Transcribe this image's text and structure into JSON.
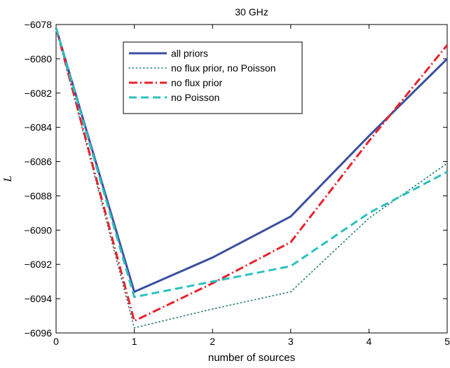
{
  "chart_data": {
    "type": "line",
    "title": "30 GHz",
    "xlabel": "number of sources",
    "ylabel": "L",
    "xlim": [
      0,
      5
    ],
    "ylim": [
      -6096,
      -6078
    ],
    "xticks": [
      0,
      1,
      2,
      3,
      4,
      5
    ],
    "yticks": [
      -6096,
      -6094,
      -6092,
      -6090,
      -6088,
      -6086,
      -6084,
      -6082,
      -6080,
      -6078
    ],
    "x_tick_labels": [
      "0",
      "1",
      "2",
      "3",
      "4",
      "5"
    ],
    "y_tick_labels": [
      "−6096",
      "−6094",
      "−6092",
      "−6090",
      "−6088",
      "−6086",
      "−6084",
      "−6082",
      "−6080",
      "−6078"
    ],
    "grid": false,
    "legend_position": "top-center",
    "x": [
      0,
      1,
      2,
      3,
      4,
      5
    ],
    "series": [
      {
        "name": "all priors",
        "color": "#3a4fa0",
        "style": "solid",
        "values": [
          -6078.2,
          -6093.6,
          -6091.6,
          -6089.2,
          -6084.5,
          -6080.0
        ]
      },
      {
        "name": "no flux prior, no Poisson",
        "color": "#1f7a72",
        "style": "dotted",
        "values": [
          -6078.2,
          -6095.7,
          -6094.6,
          -6093.6,
          -6089.3,
          -6086.1
        ]
      },
      {
        "name": "no flux prior",
        "color": "#e8212a",
        "style": "dashdot",
        "values": [
          -6078.2,
          -6095.3,
          -6093.1,
          -6090.7,
          -6084.8,
          -6079.2
        ]
      },
      {
        "name": "no Poisson",
        "color": "#2cc0bf",
        "style": "dashed",
        "values": [
          -6078.2,
          -6093.9,
          -6093.0,
          -6092.1,
          -6089.0,
          -6086.6
        ]
      }
    ]
  }
}
